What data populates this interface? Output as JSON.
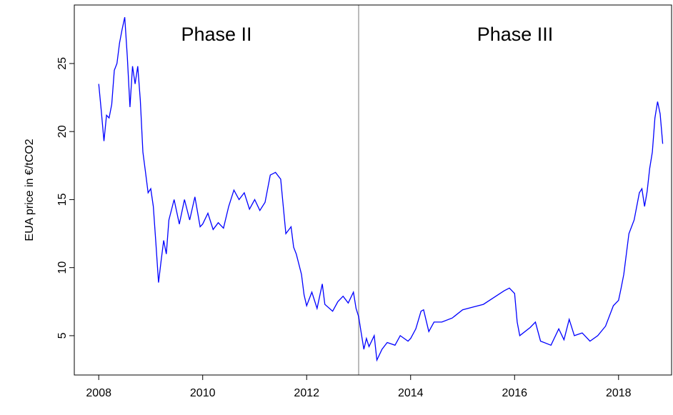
{
  "chart_data": {
    "type": "line",
    "y_label": "EUA price in €/tCO2",
    "annotations": [
      "Phase II",
      "Phase III"
    ],
    "divider_x": 2013,
    "divider_color": "#bbbbbb",
    "xlim": [
      2007.53,
      2019.02
    ],
    "ylim": [
      2.11,
      29.3
    ],
    "xticks": [
      2008,
      2010,
      2012,
      2014,
      2016,
      2018
    ],
    "yticks": [
      5,
      10,
      15,
      20,
      25
    ],
    "series": [
      {
        "name": "EUA price",
        "color": "#0000ff",
        "x": [
          2008.0,
          2008.05,
          2008.1,
          2008.15,
          2008.2,
          2008.25,
          2008.3,
          2008.35,
          2008.4,
          2008.45,
          2008.5,
          2008.55,
          2008.6,
          2008.65,
          2008.7,
          2008.75,
          2008.8,
          2008.85,
          2008.9,
          2008.95,
          2009.0,
          2009.05,
          2009.1,
          2009.15,
          2009.2,
          2009.25,
          2009.3,
          2009.35,
          2009.45,
          2009.55,
          2009.65,
          2009.75,
          2009.85,
          2009.95,
          2010.0,
          2010.1,
          2010.2,
          2010.3,
          2010.4,
          2010.5,
          2010.6,
          2010.7,
          2010.8,
          2010.9,
          2011.0,
          2011.1,
          2011.2,
          2011.3,
          2011.4,
          2011.5,
          2011.55,
          2011.6,
          2011.7,
          2011.75,
          2011.8,
          2011.9,
          2011.95,
          2012.0,
          2012.1,
          2012.2,
          2012.3,
          2012.35,
          2012.5,
          2012.6,
          2012.7,
          2012.8,
          2012.9,
          2012.95,
          2013.0,
          2013.05,
          2013.1,
          2013.15,
          2013.2,
          2013.3,
          2013.35,
          2013.45,
          2013.55,
          2013.7,
          2013.8,
          2013.95,
          2014.0,
          2014.1,
          2014.2,
          2014.25,
          2014.35,
          2014.45,
          2014.6,
          2014.8,
          2015.0,
          2015.2,
          2015.4,
          2015.6,
          2015.8,
          2015.9,
          2016.0,
          2016.05,
          2016.1,
          2016.3,
          2016.4,
          2016.5,
          2016.7,
          2016.85,
          2016.95,
          2017.05,
          2017.15,
          2017.3,
          2017.45,
          2017.6,
          2017.75,
          2017.9,
          2018.0,
          2018.05,
          2018.1,
          2018.2,
          2018.3,
          2018.4,
          2018.45,
          2018.5,
          2018.55,
          2018.6,
          2018.65,
          2018.7,
          2018.75,
          2018.8,
          2018.85
        ],
        "values": [
          23.5,
          21.5,
          19.3,
          21.2,
          21.0,
          22.0,
          24.5,
          25.0,
          26.5,
          27.5,
          28.4,
          25.5,
          21.8,
          24.8,
          23.5,
          24.8,
          22.3,
          18.5,
          17.0,
          15.5,
          15.8,
          14.5,
          11.8,
          8.9,
          10.5,
          12.0,
          11.0,
          13.5,
          15.0,
          13.2,
          15.0,
          13.5,
          15.2,
          13.0,
          13.2,
          14.0,
          12.8,
          13.3,
          12.9,
          14.5,
          15.7,
          15.0,
          15.5,
          14.3,
          15.0,
          14.2,
          14.8,
          16.8,
          17.0,
          16.5,
          14.5,
          12.5,
          13.0,
          11.5,
          11.0,
          9.5,
          8.0,
          7.2,
          8.2,
          7.0,
          8.8,
          7.3,
          6.8,
          7.5,
          7.9,
          7.4,
          8.2,
          7.0,
          6.4,
          5.2,
          4.0,
          4.8,
          4.2,
          5.0,
          3.2,
          4.0,
          4.5,
          4.3,
          5.0,
          4.6,
          4.8,
          5.5,
          6.8,
          6.9,
          5.3,
          6.0,
          6.0,
          6.3,
          6.9,
          7.1,
          7.3,
          7.8,
          8.3,
          8.5,
          8.1,
          6.0,
          5.0,
          5.6,
          6.0,
          4.6,
          4.3,
          5.5,
          4.7,
          6.2,
          5.0,
          5.2,
          4.6,
          5.0,
          5.7,
          7.2,
          7.6,
          8.5,
          9.5,
          12.5,
          13.5,
          15.5,
          15.8,
          14.5,
          15.6,
          17.3,
          18.5,
          21.0,
          22.2,
          21.3,
          19.1
        ]
      }
    ]
  }
}
